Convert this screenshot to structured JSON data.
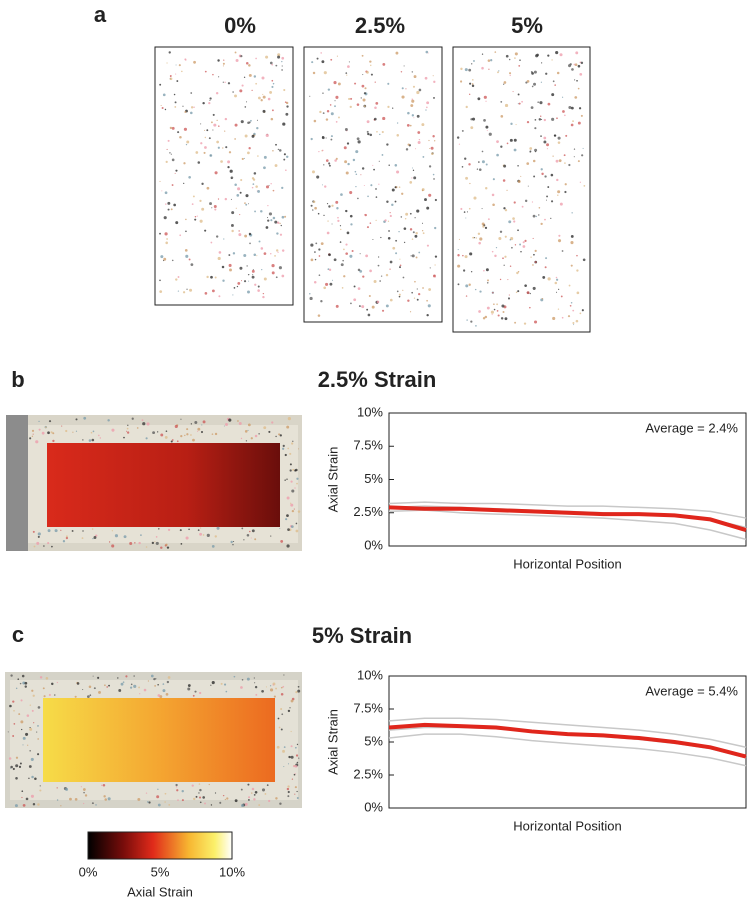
{
  "panels": {
    "a": {
      "label": "a",
      "titles": [
        "0%",
        "2.5%",
        "5%"
      ]
    },
    "b": {
      "label": "b"
    },
    "c": {
      "label": "c"
    }
  },
  "chart_data": [
    {
      "type": "line",
      "title": "2.5% Strain",
      "xlabel": "Horizontal Position",
      "ylabel": "Axial Strain",
      "annotation": "Average = 2.4%",
      "x": [
        0,
        0.1,
        0.2,
        0.3,
        0.4,
        0.5,
        0.6,
        0.7,
        0.8,
        0.9,
        1
      ],
      "xlim": [
        0,
        1
      ],
      "ylim": [
        0,
        10
      ],
      "yticks": [
        {
          "value": 0,
          "label": "0%"
        },
        {
          "value": 2.5,
          "label": "2.5%"
        },
        {
          "value": 5,
          "label": "5%"
        },
        {
          "value": 7.5,
          "label": "7.5%"
        },
        {
          "value": 10,
          "label": "10%"
        }
      ],
      "series": [
        {
          "color": "#c8c8c8",
          "values": [
            3.2,
            3.3,
            3.2,
            3.2,
            3.1,
            3.0,
            3.0,
            2.9,
            2.8,
            2.6,
            2.1
          ]
        },
        {
          "color": "#c8c8c8",
          "values": [
            2.9,
            3.0,
            2.9,
            2.8,
            2.7,
            2.6,
            2.5,
            2.4,
            2.3,
            2.0,
            1.4
          ]
        },
        {
          "color": "#c8c8c8",
          "values": [
            2.6,
            2.7,
            2.5,
            2.4,
            2.3,
            2.2,
            2.1,
            1.9,
            1.7,
            1.2,
            0.5
          ]
        },
        {
          "color": "#e0261c",
          "values": [
            2.9,
            2.8,
            2.8,
            2.7,
            2.6,
            2.5,
            2.4,
            2.4,
            2.3,
            2.0,
            1.2
          ]
        }
      ]
    },
    {
      "type": "line",
      "title": "5% Strain",
      "xlabel": "Horizontal Position",
      "ylabel": "Axial Strain",
      "annotation": "Average = 5.4%",
      "x": [
        0,
        0.1,
        0.2,
        0.3,
        0.4,
        0.5,
        0.6,
        0.7,
        0.8,
        0.9,
        1
      ],
      "xlim": [
        0,
        1
      ],
      "ylim": [
        0,
        10
      ],
      "yticks": [
        {
          "value": 0,
          "label": "0%"
        },
        {
          "value": 2.5,
          "label": "2.5%"
        },
        {
          "value": 5,
          "label": "5%"
        },
        {
          "value": 7.5,
          "label": "7.5%"
        },
        {
          "value": 10,
          "label": "10%"
        }
      ],
      "series": [
        {
          "color": "#c8c8c8",
          "values": [
            6.6,
            6.8,
            6.8,
            6.7,
            6.5,
            6.3,
            6.1,
            5.9,
            5.6,
            5.2,
            4.6
          ]
        },
        {
          "color": "#c8c8c8",
          "values": [
            5.9,
            6.1,
            6.1,
            6.0,
            5.8,
            5.6,
            5.4,
            5.2,
            4.9,
            4.5,
            3.8
          ]
        },
        {
          "color": "#c8c8c8",
          "values": [
            5.3,
            5.6,
            5.6,
            5.4,
            5.1,
            4.9,
            4.7,
            4.5,
            4.2,
            3.8,
            3.2
          ]
        },
        {
          "color": "#e0261c",
          "values": [
            6.1,
            6.3,
            6.2,
            6.1,
            5.8,
            5.6,
            5.5,
            5.3,
            5.0,
            4.6,
            3.9
          ]
        }
      ]
    }
  ],
  "colorbar": {
    "label": "Axial Strain",
    "lim": [
      0,
      10
    ],
    "ticks": [
      {
        "value": 0,
        "label": "0%"
      },
      {
        "value": 5,
        "label": "5%"
      },
      {
        "value": 10,
        "label": "10%"
      }
    ]
  }
}
